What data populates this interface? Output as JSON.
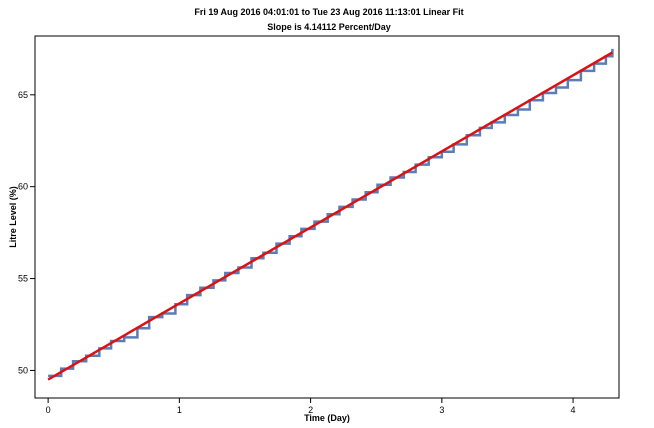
{
  "chart_data": {
    "type": "line",
    "title": "Fri 19 Aug 2016 04:01:01 to Tue 23 Aug 2016 11:13:01 Linear Fit",
    "subtitle": "Slope is 4.14112 Percent/Day",
    "xlabel": "Time (Day)",
    "ylabel": "Litre Level (%)",
    "xlim": [
      -0.1,
      4.35
    ],
    "ylim": [
      48.5,
      68.2
    ],
    "x_ticks": [
      0,
      1,
      2,
      3,
      4
    ],
    "y_ticks": [
      50,
      55,
      60,
      65
    ],
    "grid": false,
    "series": [
      {
        "style": "step",
        "color": "#5a7db8",
        "x": [
          0.0,
          0.1,
          0.19,
          0.29,
          0.39,
          0.48,
          0.58,
          0.68,
          0.77,
          0.87,
          0.97,
          1.06,
          1.16,
          1.26,
          1.35,
          1.45,
          1.55,
          1.64,
          1.74,
          1.84,
          1.93,
          2.03,
          2.13,
          2.22,
          2.32,
          2.42,
          2.51,
          2.61,
          2.71,
          2.8,
          2.9,
          3.0,
          3.09,
          3.19,
          3.29,
          3.38,
          3.48,
          3.58,
          3.67,
          3.77,
          3.87,
          3.96,
          4.06,
          4.16,
          4.25,
          4.3
        ],
        "y": [
          49.7,
          50.1,
          50.5,
          50.8,
          51.2,
          51.6,
          51.8,
          52.3,
          52.9,
          53.1,
          53.6,
          54.1,
          54.5,
          54.9,
          55.3,
          55.6,
          56.1,
          56.4,
          56.9,
          57.3,
          57.7,
          58.1,
          58.5,
          58.9,
          59.3,
          59.7,
          60.1,
          60.5,
          60.8,
          61.2,
          61.6,
          61.9,
          62.3,
          62.8,
          63.2,
          63.5,
          63.9,
          64.2,
          64.7,
          65.1,
          65.4,
          65.8,
          66.3,
          66.7,
          67.1,
          67.5
        ]
      },
      {
        "style": "line",
        "color": "#dd1111",
        "x": [
          0.0,
          4.3
        ],
        "y": [
          49.5,
          67.3
        ]
      }
    ]
  }
}
